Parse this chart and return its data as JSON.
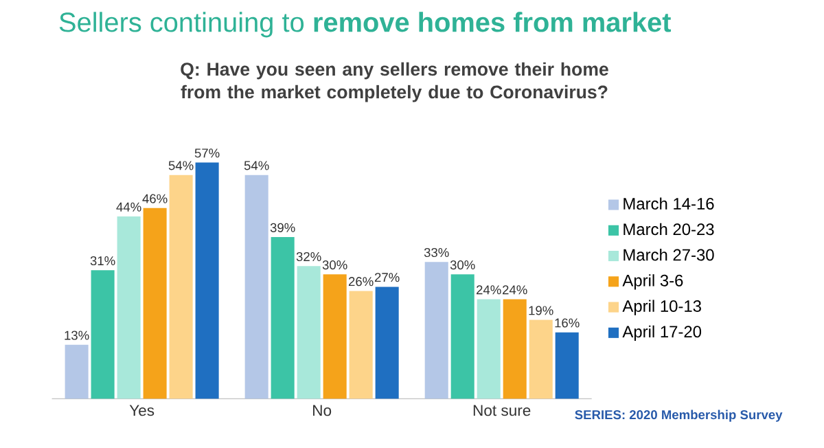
{
  "chart_data": {
    "type": "bar",
    "title": "Sellers continuing to **remove homes from market**",
    "subtitle": "Q: Have you seen any sellers remove their home from the market completely due to Coronavirus?",
    "categories": [
      "Yes",
      "No",
      "Not sure"
    ],
    "series": [
      {
        "name": "March 14-16",
        "color": "#b4c7e7",
        "values": [
          13,
          54,
          33
        ],
        "value_labels": [
          "13%",
          "54%",
          "33%"
        ]
      },
      {
        "name": "March 20-23",
        "color": "#3cc4a6",
        "values": [
          31,
          39,
          30
        ],
        "value_labels": [
          "31%",
          "39%",
          "30%"
        ]
      },
      {
        "name": "March 27-30",
        "color": "#a8e8da",
        "values": [
          44,
          32,
          24
        ],
        "value_labels": [
          "44%",
          "32%",
          "24%"
        ]
      },
      {
        "name": "April 3-6",
        "color": "#f5a31a",
        "values": [
          46,
          30,
          24
        ],
        "value_labels": [
          "46%",
          "30%",
          "24%"
        ]
      },
      {
        "name": "April 10-13",
        "color": "#fdd48a",
        "values": [
          54,
          26,
          19
        ],
        "value_labels": [
          "54%",
          "26%",
          "19%"
        ]
      },
      {
        "name": "April 17-20",
        "color": "#1f6fc1",
        "values": [
          57,
          27,
          16
        ],
        "value_labels": [
          "57%",
          "27%",
          "16%"
        ]
      }
    ],
    "legend": "right",
    "annotations": [
      "SERIES: 2020 Membership Survey"
    ]
  }
}
